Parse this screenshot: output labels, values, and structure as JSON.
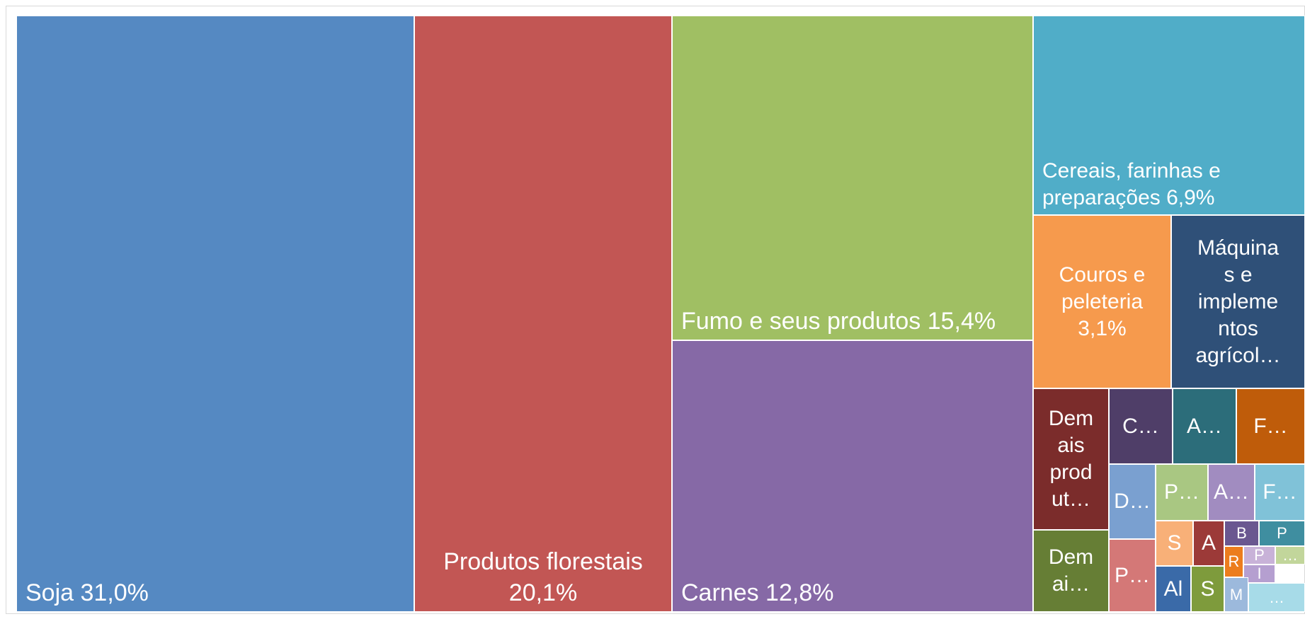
{
  "chart_data": {
    "type": "treemap",
    "title": "",
    "items": [
      {
        "name": "Soja",
        "value": 31.0,
        "label": "Soja 31,0%",
        "color": "#5589c2"
      },
      {
        "name": "Produtos florestais",
        "value": 20.1,
        "label": "Produtos florestais\n20,1%",
        "color": "#c25654"
      },
      {
        "name": "Fumo e seus produtos",
        "value": 15.4,
        "label": "Fumo e seus produtos 15,4%",
        "color": "#a0bf63"
      },
      {
        "name": "Carnes",
        "value": 12.8,
        "label": "Carnes 12,8%",
        "color": "#8669a6"
      },
      {
        "name": "Cereais, farinhas e preparações",
        "value": 6.9,
        "label": "Cereais, farinhas e\npreparações 6,9%",
        "color": "#50adc8"
      },
      {
        "name": "Couros e peleteria",
        "value": 3.1,
        "label": "Couros e\npeleteria\n3,1%",
        "color": "#f69a4d"
      },
      {
        "name": "Máquinas e implementos agrícolas",
        "value": 2.6,
        "label": "Máquina\ns e\nimpleme\nntos\nagrícol…",
        "color": "#2f5078"
      },
      {
        "name": "Demais produtos",
        "value": 1.4,
        "label": "Dem\nais\nprod\nut…",
        "color": "#7b2c2b"
      },
      {
        "name": "C…",
        "value": 0.65,
        "label": "C…",
        "color": "#4f3e68"
      },
      {
        "name": "A…",
        "value": 0.65,
        "label": "A…",
        "color": "#2c6d7a"
      },
      {
        "name": "F…",
        "value": 0.62,
        "label": "F…",
        "color": "#bf5c0a"
      },
      {
        "name": "D…",
        "value": 0.5,
        "label": "D…",
        "color": "#7aa0d0"
      },
      {
        "name": "P…",
        "value": 0.45,
        "label": "P…",
        "color": "#a9c782"
      },
      {
        "name": "A…",
        "value": 0.43,
        "label": "A…",
        "color": "#a18cc0"
      },
      {
        "name": "F…",
        "value": 0.42,
        "label": "F…",
        "color": "#80c2d8"
      },
      {
        "name": "Demais",
        "value": 0.7,
        "label": "Dem\nai…",
        "color": "#667e35"
      },
      {
        "name": "P…",
        "value": 0.45,
        "label": "P…",
        "color": "#d47877"
      },
      {
        "name": "S",
        "value": 0.25,
        "label": "S",
        "color": "#f8b078"
      },
      {
        "name": "A",
        "value": 0.25,
        "label": "A",
        "color": "#9c3a38"
      },
      {
        "name": "B",
        "value": 0.12,
        "label": "B",
        "color": "#6a5790"
      },
      {
        "name": "P",
        "value": 0.12,
        "label": "P",
        "color": "#3f8ea0"
      },
      {
        "name": "R",
        "value": 0.08,
        "label": "R",
        "color": "#ec7d1d"
      },
      {
        "name": "P",
        "value": 0.06,
        "label": "P",
        "color": "#c8b2d8"
      },
      {
        "name": "…",
        "value": 0.05,
        "label": "…",
        "color": "#c2d69b"
      },
      {
        "name": "I",
        "value": 0.06,
        "label": "I",
        "color": "#b59fd0"
      },
      {
        "name": "Al",
        "value": 0.18,
        "label": "Al",
        "color": "#3a6aa8"
      },
      {
        "name": "S",
        "value": 0.18,
        "label": "S",
        "color": "#7e9b3c"
      },
      {
        "name": "M",
        "value": 0.07,
        "label": "M",
        "color": "#9cb9dc"
      },
      {
        "name": "…",
        "value": 0.06,
        "label": "…",
        "color": "#a7dbe8"
      }
    ]
  }
}
